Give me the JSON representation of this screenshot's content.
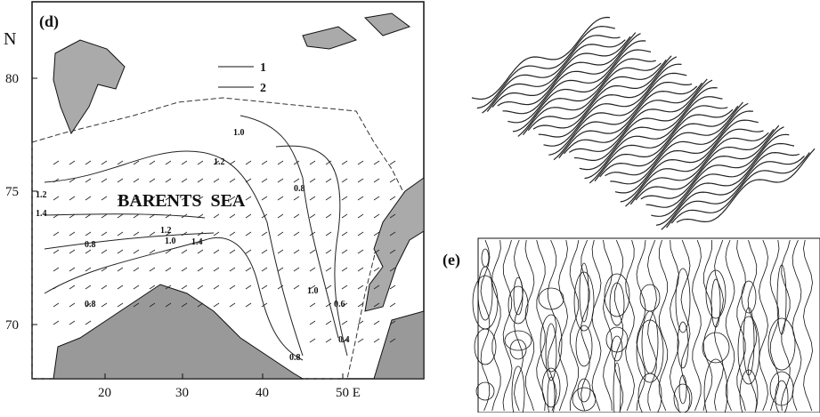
{
  "map": {
    "panel_label": "(d)",
    "north_label": "N",
    "lat_ticks": [
      "80",
      "75",
      "70"
    ],
    "lon_ticks": [
      "20",
      "30",
      "40",
      "50 E"
    ],
    "sea_label": "BARENTS  SEA",
    "legend": [
      "1",
      "2"
    ],
    "contour_labels": [
      "1.0",
      "1.2",
      "0.8",
      "1.2",
      "1.4",
      "1.4",
      "1.2",
      "1.0",
      "0.8",
      "0.8",
      "1.0",
      "0.6",
      "0.4",
      "0.8"
    ]
  },
  "panel_e": {
    "label": "(e)"
  }
}
